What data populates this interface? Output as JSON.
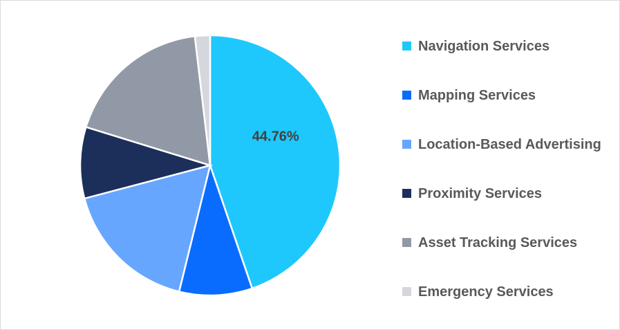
{
  "chart_data": {
    "type": "pie",
    "title": "",
    "slices": [
      {
        "label": "Navigation Services",
        "value": 44.76,
        "color": "#1ec8fc",
        "data_label": "44.76%"
      },
      {
        "label": "Mapping Services",
        "value": 9.08,
        "color": "#0a6cff"
      },
      {
        "label": "Location-Based Advertising",
        "value": 17.06,
        "color": "#66a6ff"
      },
      {
        "label": "Proximity Services",
        "value": 8.86,
        "color": "#1c2f5a"
      },
      {
        "label": "Asset Tracking Services",
        "value": 18.36,
        "color": "#9299a6"
      },
      {
        "label": "Emergency Services",
        "value": 1.88,
        "color": "#d5d7dc"
      }
    ],
    "start_angle": "top, clockwise",
    "legend_position": "right"
  }
}
